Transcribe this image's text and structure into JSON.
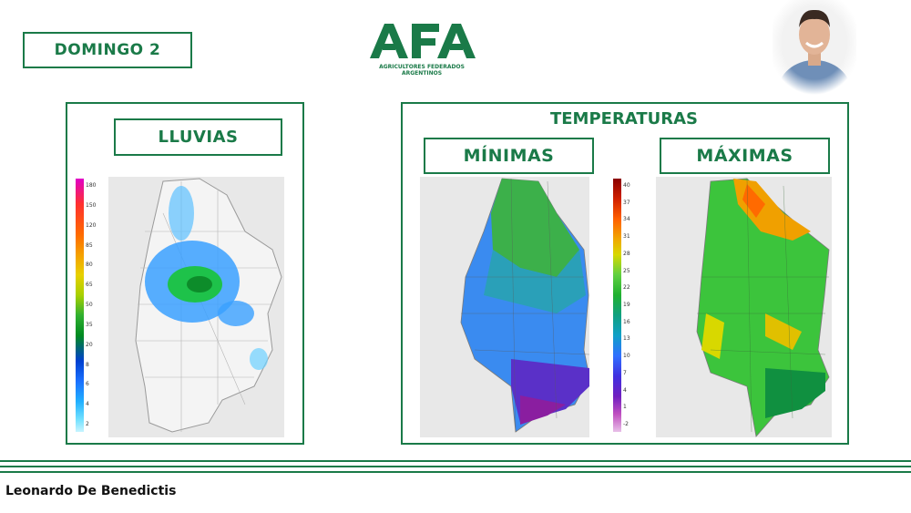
{
  "header": {
    "day_label": "DOMINGO 2",
    "logo_text": "AFA",
    "logo_subtitle_line1": "AGRICULTORES FEDERADOS",
    "logo_subtitle_line2": "ARGENTINOS"
  },
  "rain_panel": {
    "title": "LLUVIAS",
    "scale_ticks": [
      "180",
      "150",
      "120",
      "85",
      "80",
      "65",
      "50",
      "35",
      "20",
      "8",
      "6",
      "4",
      "2"
    ]
  },
  "temp_panel": {
    "title": "TEMPERATURAS",
    "min_label": "MÍNIMAS",
    "max_label": "MÁXIMAS",
    "scale_ticks": [
      "40",
      "37",
      "34",
      "31",
      "28",
      "25",
      "22",
      "19",
      "16",
      "13",
      "10",
      "7",
      "4",
      "1",
      "-2"
    ]
  },
  "footer": {
    "presenter": "Leonardo De Benedictis"
  },
  "colors": {
    "brand_green": "#1a7a48"
  }
}
